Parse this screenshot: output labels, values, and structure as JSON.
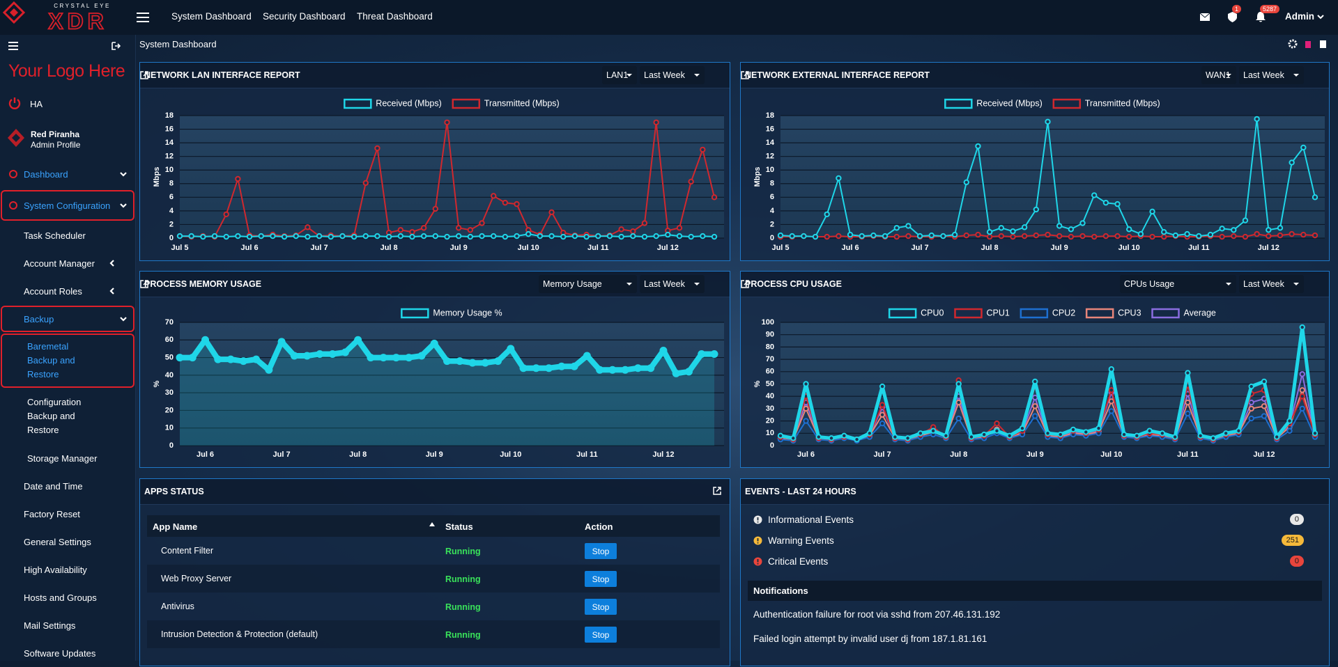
{
  "topbar": {
    "brand_small": "CRYSTAL EYE",
    "brand": "XDR",
    "nav": [
      "System Dashboard",
      "Security Dashboard",
      "Threat Dashboard"
    ],
    "badges": [
      "1",
      "5287"
    ],
    "user": "Admin"
  },
  "sidebar": {
    "logo": "Your Logo Here",
    "ha": "HA",
    "profile": {
      "name": "Red Piranha",
      "role": "Admin Profile"
    },
    "menu": [
      {
        "label": "Dashboard",
        "chevron": "down"
      },
      {
        "label": "System Configuration",
        "chevron": "down",
        "active": true,
        "children": [
          {
            "label": "Task Scheduler"
          },
          {
            "label": "Account Manager",
            "chevron": "left"
          },
          {
            "label": "Account Roles",
            "chevron": "left"
          },
          {
            "label": "Backup",
            "chevron": "down",
            "active": true,
            "children": [
              {
                "label": [
                  "Baremetal",
                  "Backup and",
                  "Restore"
                ],
                "active": true
              },
              {
                "label": [
                  "Configuration",
                  "Backup and",
                  "Restore"
                ]
              },
              {
                "label": "Storage Manager"
              }
            ]
          },
          {
            "label": "Date and Time"
          },
          {
            "label": "Factory Reset"
          },
          {
            "label": "General Settings"
          },
          {
            "label": "High Availability"
          },
          {
            "label": "Hosts and Groups"
          },
          {
            "label": "Mail Settings"
          },
          {
            "label": "Software Updates"
          }
        ]
      }
    ]
  },
  "breadcrumb": "System Dashboard",
  "panels": {
    "lan": {
      "title": "NETWORK LAN INTERFACE REPORT",
      "controls": [
        "LAN1",
        "Last Week"
      ],
      "chart": {
        "type": "line",
        "ylabel": "Mbps",
        "grid": true,
        "ylim": [
          0,
          18
        ],
        "yticks": [
          0,
          2,
          4,
          6,
          8,
          10,
          12,
          14,
          16,
          18
        ],
        "categories": [
          "Jul 5",
          null,
          null,
          null,
          null,
          null,
          "Jul 6",
          null,
          null,
          null,
          null,
          null,
          "Jul 7",
          null,
          null,
          null,
          null,
          null,
          "Jul 8",
          null,
          null,
          null,
          null,
          null,
          "Jul 9",
          null,
          null,
          null,
          null,
          null,
          "Jul 10",
          null,
          null,
          null,
          null,
          null,
          "Jul 11",
          null,
          null,
          null,
          null,
          null,
          "Jul 12",
          null,
          null,
          null,
          null
        ],
        "series": [
          {
            "name": "Received (Mbps)",
            "color": "#1fd6e8",
            "values": [
              0.3,
              0.3,
              0.2,
              0.3,
              0.2,
              0.3,
              0.2,
              0.3,
              0.3,
              0.2,
              0.3,
              0.2,
              0.3,
              0.2,
              0.3,
              0.2,
              0.3,
              0.3,
              0.2,
              0.3,
              0.2,
              0.3,
              0.3,
              0.2,
              0.3,
              0.2,
              0.3,
              0.3,
              0.2,
              0.3,
              0.6,
              0.3,
              0.3,
              0.2,
              0.3,
              0.2,
              0.3,
              0.3,
              0.2,
              0.3,
              0.2,
              0.3,
              0.5,
              0.3,
              0.2,
              0.3,
              0.2
            ]
          },
          {
            "name": "Transmitted (Mbps)",
            "color": "#d0282e",
            "values": [
              0.3,
              0.2,
              0.3,
              0.2,
              3.5,
              8.7,
              0.4,
              0.3,
              0.5,
              0.3,
              0.4,
              1.6,
              0.3,
              0.4,
              0.3,
              0.4,
              8.1,
              13.2,
              0.8,
              1.2,
              0.9,
              1.5,
              4.3,
              17,
              1.5,
              1.2,
              2.2,
              6.2,
              5.2,
              5,
              1.2,
              0.5,
              3.8,
              0.8,
              0.4,
              0.5,
              0.3,
              0.4,
              1.3,
              1,
              2.2,
              17,
              1.1,
              1.5,
              8.3,
              13,
              6
            ]
          }
        ]
      }
    },
    "external": {
      "title": "NETWORK EXTERNAL INTERFACE REPORT",
      "controls": [
        "WAN1",
        "Last Week"
      ],
      "chart": {
        "type": "line",
        "ylabel": "Mbps",
        "grid": true,
        "ylim": [
          0,
          18
        ],
        "yticks": [
          0,
          2,
          4,
          6,
          8,
          10,
          12,
          14,
          16,
          18
        ],
        "categories": [
          "Jul 5",
          null,
          null,
          null,
          null,
          null,
          "Jul 6",
          null,
          null,
          null,
          null,
          null,
          "Jul 7",
          null,
          null,
          null,
          null,
          null,
          "Jul 8",
          null,
          null,
          null,
          null,
          null,
          "Jul 9",
          null,
          null,
          null,
          null,
          null,
          "Jul 10",
          null,
          null,
          null,
          null,
          null,
          "Jul 11",
          null,
          null,
          null,
          null,
          null,
          "Jul 12",
          null,
          null,
          null,
          null
        ],
        "series": [
          {
            "name": "Received (Mbps)",
            "color": "#1fd6e8",
            "values": [
              0.4,
              0.3,
              0.3,
              0.2,
              3.5,
              8.8,
              0.5,
              0.3,
              0.4,
              0.3,
              1.5,
              1.8,
              0.3,
              0.4,
              0.3,
              0.5,
              8.2,
              13.5,
              0.9,
              1.5,
              1,
              1.6,
              4.2,
              17.1,
              1.8,
              1.3,
              2.2,
              6.3,
              5.2,
              5,
              1.3,
              0.6,
              3.9,
              0.9,
              0.4,
              0.6,
              0.3,
              0.5,
              1.4,
              1.2,
              2.6,
              17.5,
              1.2,
              1.5,
              11.1,
              13.3,
              6
            ]
          },
          {
            "name": "Transmitted (Mbps)",
            "color": "#d0282e",
            "values": [
              0.2,
              0.2,
              0.3,
              0.2,
              0.2,
              0.3,
              0.2,
              0.2,
              0.3,
              0.2,
              0.2,
              0.3,
              0.2,
              0.2,
              0.3,
              0.2,
              0.4,
              0.5,
              0.2,
              0.3,
              0.2,
              0.3,
              0.4,
              0.5,
              0.3,
              0.2,
              0.3,
              0.2,
              0.3,
              0.3,
              0.2,
              0.3,
              0.2,
              0.2,
              0.3,
              0.2,
              0.2,
              0.3,
              0.2,
              0.3,
              0.2,
              0.6,
              0.3,
              0.4,
              0.6,
              0.5,
              0.4
            ]
          }
        ]
      }
    },
    "memory": {
      "title": "PROCESS MEMORY USAGE",
      "controls": [
        "Memory Usage",
        "Last Week"
      ],
      "chart": {
        "type": "area",
        "ylabel": "%",
        "grid": true,
        "ylim": [
          0,
          70
        ],
        "yticks": [
          0,
          10,
          20,
          30,
          40,
          50,
          60,
          70
        ],
        "categories": [
          null,
          null,
          "Jul 6",
          null,
          null,
          null,
          null,
          null,
          "Jul 7",
          null,
          null,
          null,
          null,
          null,
          "Jul 8",
          null,
          null,
          null,
          null,
          null,
          "Jul 9",
          null,
          null,
          null,
          null,
          null,
          "Jul 10",
          null,
          null,
          null,
          null,
          null,
          "Jul 11",
          null,
          null,
          null,
          null,
          null,
          "Jul 12",
          null,
          null,
          null,
          null
        ],
        "series": [
          {
            "name": "Memory Usage %",
            "color": "#1fd6e8",
            "values": [
              50,
              50,
              60,
              49,
              49,
              48,
              49,
              43,
              59,
              51,
              51,
              52,
              52,
              53,
              60,
              50,
              50,
              50,
              50,
              51,
              58,
              48,
              48,
              47,
              47,
              48,
              55,
              44,
              44,
              44,
              45,
              45,
              51,
              43,
              43,
              43,
              44,
              44,
              54,
              41,
              42,
              52,
              52
            ]
          }
        ]
      }
    },
    "cpu": {
      "title": "PROCESS CPU USAGE",
      "controls": [
        "CPUs Usage",
        "Last Week"
      ],
      "chart": {
        "type": "line",
        "ylabel": "%",
        "grid": true,
        "ylim": [
          0,
          100
        ],
        "yticks": [
          0,
          10,
          20,
          30,
          40,
          50,
          60,
          70,
          80,
          90,
          100
        ],
        "categories": [
          null,
          null,
          "Jul 6",
          null,
          null,
          null,
          null,
          null,
          "Jul 7",
          null,
          null,
          null,
          null,
          null,
          "Jul 8",
          null,
          null,
          null,
          null,
          null,
          "Jul 9",
          null,
          null,
          null,
          null,
          null,
          "Jul 10",
          null,
          null,
          null,
          null,
          null,
          "Jul 11",
          null,
          null,
          null,
          null,
          null,
          "Jul 12",
          null,
          null,
          null,
          null
        ],
        "series": [
          {
            "name": "CPU0",
            "color": "#1fd6e8",
            "values": [
              8,
              6,
              50,
              7,
              6,
              8,
              5,
              10,
              48,
              7,
              6,
              10,
              12,
              8,
              50,
              7,
              9,
              12,
              8,
              14,
              52,
              10,
              9,
              13,
              11,
              14,
              62,
              9,
              8,
              12,
              10,
              7,
              59,
              8,
              6,
              10,
              12,
              48,
              52,
              7,
              20,
              96,
              10
            ]
          },
          {
            "name": "CPU1",
            "color": "#d0282e",
            "values": [
              7,
              5,
              40,
              6,
              5,
              7,
              5,
              9,
              33,
              6,
              5,
              9,
              15,
              7,
              53,
              6,
              8,
              18,
              7,
              12,
              48,
              9,
              8,
              12,
              10,
              13,
              45,
              8,
              7,
              10,
              9,
              6,
              49,
              7,
              5,
              9,
              11,
              42,
              45,
              6,
              18,
              40,
              9
            ]
          },
          {
            "name": "CPU2",
            "color": "#1e6fd0",
            "values": [
              5,
              4,
              20,
              5,
              4,
              6,
              4,
              7,
              18,
              5,
              4,
              7,
              9,
              6,
              22,
              5,
              6,
              10,
              6,
              9,
              24,
              7,
              6,
              9,
              8,
              10,
              28,
              7,
              6,
              8,
              7,
              5,
              26,
              6,
              4,
              7,
              9,
              22,
              24,
              5,
              12,
              30,
              7
            ]
          },
          {
            "name": "CPU3",
            "color": "#e8857a",
            "values": [
              6,
              5,
              30,
              6,
              5,
              7,
              5,
              8,
              25,
              6,
              5,
              8,
              11,
              7,
              35,
              6,
              7,
              13,
              7,
              10,
              32,
              8,
              7,
              10,
              9,
              11,
              36,
              8,
              7,
              9,
              8,
              6,
              35,
              7,
              5,
              8,
              10,
              30,
              32,
              6,
              15,
              45,
              8
            ]
          },
          {
            "name": "Average",
            "color": "#8a6de0",
            "values": [
              6,
              5,
              35,
              6,
              5,
              7,
              5,
              8,
              31,
              6,
              5,
              8,
              11,
              7,
              40,
              6,
              7,
              13,
              7,
              11,
              39,
              8,
              7,
              11,
              9,
              12,
              43,
              8,
              7,
              10,
              8,
              6,
              42,
              7,
              5,
              8,
              10,
              35,
              38,
              6,
              16,
              58,
              8
            ]
          }
        ]
      }
    }
  },
  "apps": {
    "title": "APPS STATUS",
    "columns": [
      "App Name",
      "Status",
      "Action"
    ],
    "rows": [
      {
        "name": "Content Filter",
        "status": "Running",
        "action": "Stop"
      },
      {
        "name": "Web Proxy Server",
        "status": "Running",
        "action": "Stop"
      },
      {
        "name": "Antivirus",
        "status": "Running",
        "action": "Stop"
      },
      {
        "name": "Intrusion Detection & Protection (default)",
        "status": "Running",
        "action": "Stop"
      }
    ]
  },
  "events": {
    "title": "EVENTS - LAST 24 HOURS",
    "items": [
      {
        "label": "Informational Events",
        "count": 0,
        "color": "#e8e8e8"
      },
      {
        "label": "Warning Events",
        "count": 251,
        "color": "#f5b93a"
      },
      {
        "label": "Critical Events",
        "count": 0,
        "color": "#e8453c"
      }
    ],
    "notifications": {
      "title": "Notifications",
      "items": [
        "Authentication failure for root via sshd from 207.46.131.192",
        "Failed login attempt by invalid user dj from 187.1.81.161"
      ]
    }
  }
}
